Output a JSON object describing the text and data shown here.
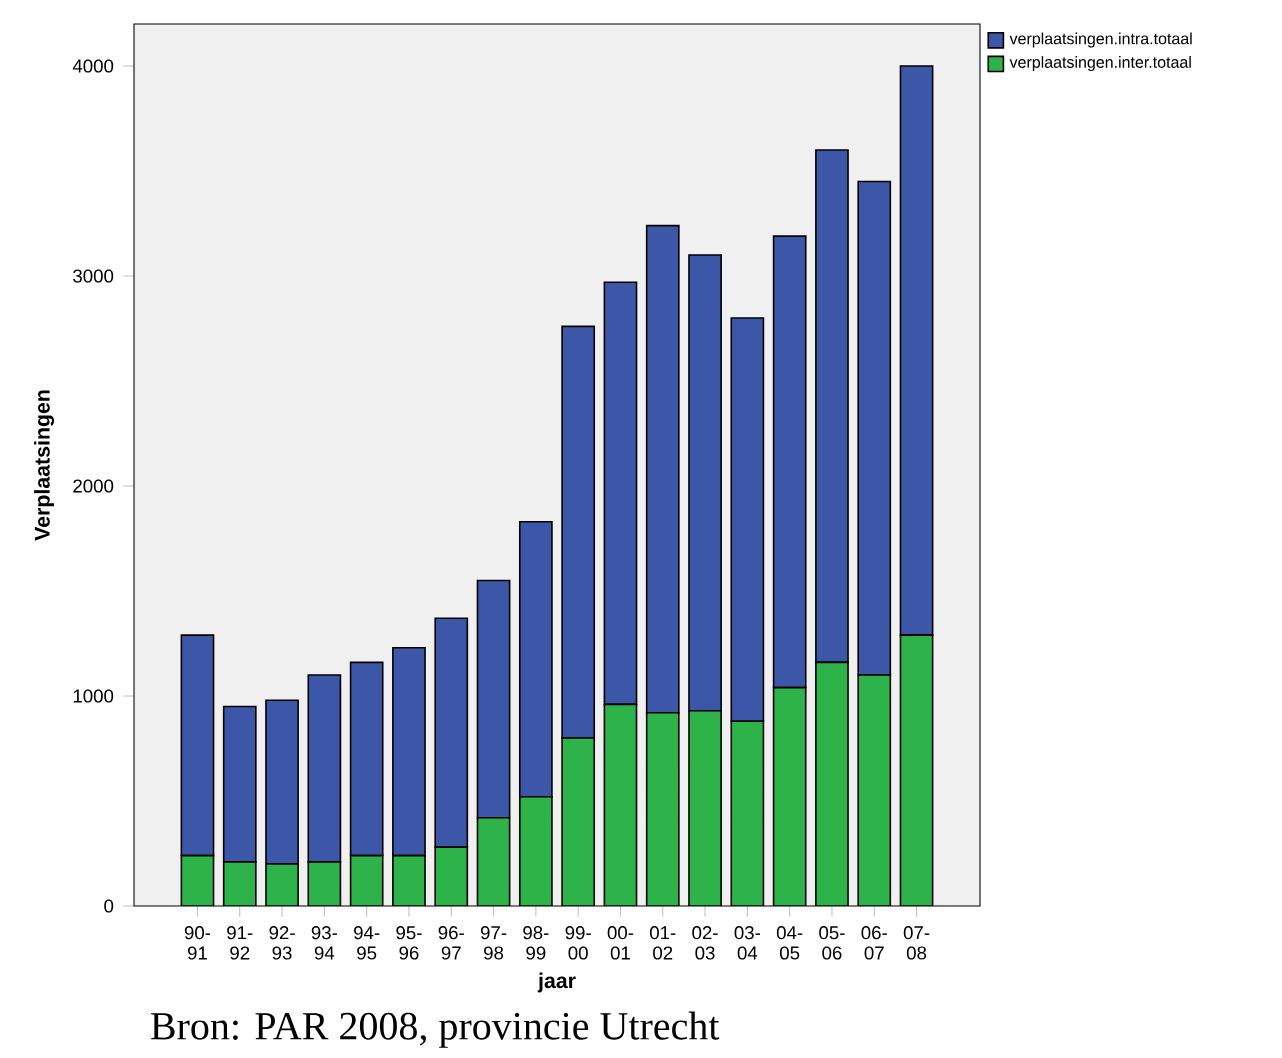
{
  "chart_data": {
    "type": "bar",
    "stacked": true,
    "xlabel": "jaar",
    "ylabel": "Verplaatsingen",
    "categories": [
      "90-91",
      "91-92",
      "92-93",
      "93-94",
      "94-95",
      "95-96",
      "96-97",
      "97-98",
      "98-99",
      "99-00",
      "00-01",
      "01-02",
      "02-03",
      "03-04",
      "04-05",
      "05-06",
      "06-07",
      "07-08"
    ],
    "series": [
      {
        "name": "verplaatsingen.inter.totaal",
        "color": "#2db34a",
        "values": [
          240,
          210,
          200,
          210,
          240,
          240,
          280,
          420,
          520,
          800,
          960,
          920,
          930,
          880,
          1040,
          1160,
          1100,
          1290
        ]
      },
      {
        "name": "verplaatsingen.intra.totaal",
        "color": "#3c56a8",
        "values": [
          1050,
          740,
          780,
          890,
          920,
          990,
          1090,
          1130,
          1310,
          1960,
          2010,
          2320,
          2170,
          1920,
          2150,
          2440,
          2350,
          2710
        ]
      }
    ],
    "ylim": [
      0,
      4200
    ],
    "yticks": [
      0,
      1000,
      2000,
      3000,
      4000
    ],
    "grid": false,
    "legend": "top right",
    "annotations": [
      "Bron: PAR 2008, provincie Utrecht"
    ]
  }
}
